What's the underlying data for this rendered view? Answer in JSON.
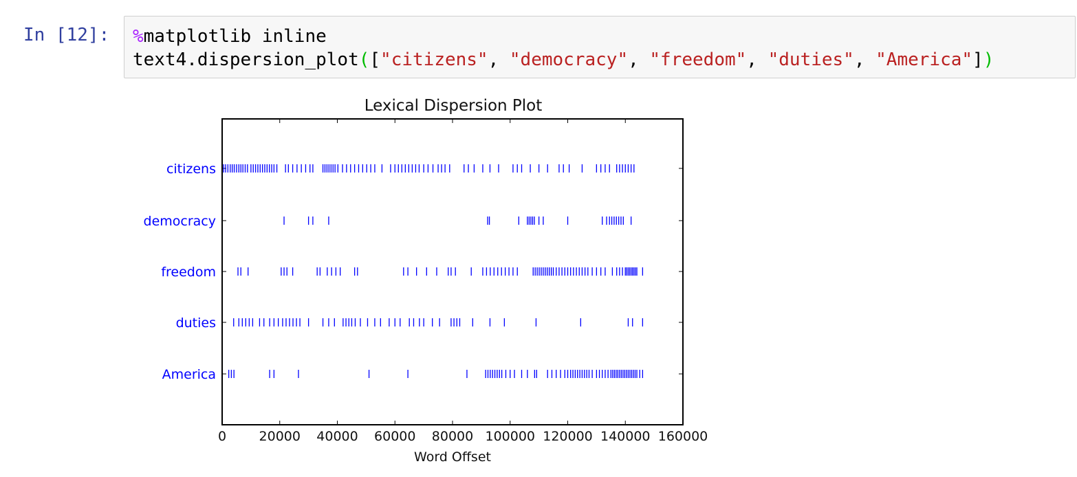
{
  "cell": {
    "prompt": "In [12]:",
    "line1": {
      "percent": "%",
      "magic": "matplotlib inline"
    },
    "line2": {
      "prefix": "text4.dispersion_plot",
      "open_paren": "(",
      "open_bracket": "[",
      "args": [
        "\"citizens\"",
        "\"democracy\"",
        "\"freedom\"",
        "\"duties\"",
        "\"America\""
      ],
      "sep": ", ",
      "close_bracket": "]",
      "close_paren": ")"
    }
  },
  "colors": {
    "marker": "#0000ff",
    "prompt": "#303f9f",
    "string": "#ba2121",
    "magic": "#aa22ff",
    "paren": "#00bb00"
  },
  "chart_data": {
    "type": "scatter",
    "title": "Lexical Dispersion Plot",
    "xlabel": "Word Offset",
    "xlim": [
      0,
      160000
    ],
    "xticks": [
      "0",
      "20000",
      "40000",
      "60000",
      "80000",
      "100000",
      "120000",
      "140000",
      "160000"
    ],
    "grid": false,
    "series": [
      {
        "name": "citizens",
        "x": [
          500,
          1200,
          2000,
          2800,
          3500,
          4200,
          5000,
          5800,
          6500,
          7200,
          8000,
          8800,
          10000,
          10800,
          11600,
          12400,
          13200,
          14000,
          14800,
          15600,
          16400,
          17200,
          18000,
          19000,
          22000,
          23000,
          24500,
          26000,
          27500,
          29000,
          30500,
          31500,
          35000,
          35700,
          36400,
          37100,
          37800,
          38500,
          39200,
          40200,
          41800,
          43200,
          44600,
          46000,
          47400,
          48800,
          50200,
          51600,
          53000,
          55500,
          58500,
          60000,
          61200,
          62400,
          63600,
          64800,
          66000,
          67200,
          68400,
          70000,
          71500,
          73200,
          75000,
          76200,
          77400,
          79000,
          84000,
          85500,
          87500,
          90500,
          93000,
          96000,
          101000,
          102500,
          104000,
          107000,
          110000,
          113000,
          117000,
          118500,
          120500,
          125000,
          130000,
          131500,
          133000,
          134500,
          137000,
          138000,
          139000,
          140000,
          141000,
          142000,
          143000
        ]
      },
      {
        "name": "democracy",
        "x": [
          21500,
          30000,
          31500,
          37000,
          92200,
          92800,
          103000,
          106000,
          106600,
          107200,
          107800,
          108400,
          110000,
          111500,
          120000,
          132000,
          133500,
          134500,
          135300,
          136100,
          136900,
          137700,
          138500,
          139300,
          142000
        ]
      },
      {
        "name": "freedom",
        "x": [
          5500,
          6500,
          9000,
          20500,
          21500,
          22500,
          24500,
          33000,
          34000,
          36500,
          38000,
          39500,
          41000,
          46000,
          47000,
          63000,
          64500,
          67500,
          71000,
          74500,
          78500,
          79500,
          81000,
          86500,
          90500,
          91800,
          93100,
          94400,
          95700,
          97000,
          98300,
          99600,
          101000,
          102500,
          108000,
          108700,
          109400,
          110100,
          110800,
          111500,
          112200,
          112900,
          113600,
          114300,
          115000,
          116000,
          117000,
          118000,
          119000,
          120000,
          121000,
          122000,
          123000,
          124000,
          125000,
          126000,
          127000,
          128500,
          130000,
          131500,
          133000,
          135500,
          137000,
          138000,
          139000,
          140000,
          140500,
          141000,
          141500,
          142000,
          142500,
          143000,
          143500,
          144000,
          146000
        ]
      },
      {
        "name": "duties",
        "x": [
          4000,
          5800,
          7000,
          8200,
          9400,
          10600,
          13000,
          14500,
          16500,
          18000,
          19500,
          21000,
          22200,
          23400,
          24600,
          25800,
          27000,
          30000,
          35000,
          37000,
          39000,
          42000,
          43000,
          44000,
          45000,
          46200,
          48000,
          50500,
          53000,
          55000,
          58000,
          60000,
          61800,
          65000,
          66500,
          68500,
          70000,
          73000,
          75500,
          79500,
          80500,
          81500,
          82500,
          87000,
          93000,
          98000,
          109000,
          124500,
          141000,
          142500,
          146000
        ]
      },
      {
        "name": "America",
        "x": [
          2300,
          3200,
          4100,
          16500,
          18000,
          26500,
          51000,
          64500,
          85000,
          91500,
          92300,
          93100,
          93900,
          94700,
          95500,
          96300,
          97100,
          98500,
          100000,
          101500,
          104000,
          106000,
          108500,
          109200,
          113000,
          114500,
          116000,
          117500,
          119000,
          120000,
          121000,
          121800,
          122600,
          123400,
          124200,
          125000,
          125800,
          126600,
          127400,
          128500,
          130000,
          131000,
          132000,
          133000,
          134000,
          135000,
          135600,
          136200,
          136800,
          137400,
          138000,
          138600,
          139200,
          139800,
          140400,
          141000,
          141600,
          142200,
          142800,
          143400,
          144000,
          145000,
          146000
        ]
      }
    ]
  }
}
